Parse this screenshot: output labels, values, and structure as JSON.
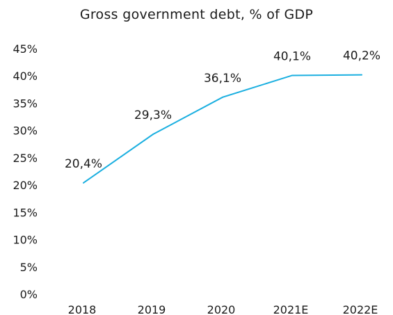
{
  "chart_data": {
    "type": "line",
    "title": "Gross government debt, % of GDP",
    "xlabel": "",
    "ylabel": "",
    "categories": [
      "2018",
      "2019",
      "2020",
      "2021E",
      "2022E"
    ],
    "series": [
      {
        "values": [
          20.4,
          29.3,
          36.1,
          40.1,
          40.2
        ],
        "data_labels": [
          "20,4%",
          "29,3%",
          "36,1%",
          "40,1%",
          "40,2%"
        ],
        "color": "#1aafe0"
      }
    ],
    "ylim": [
      0,
      45
    ],
    "y_ticks": [
      0,
      5,
      10,
      15,
      20,
      25,
      30,
      35,
      40,
      45
    ],
    "y_tick_labels": [
      "0%",
      "5%",
      "10%",
      "15%",
      "20%",
      "25%",
      "30%",
      "35%",
      "40%",
      "45%"
    ],
    "grid": false,
    "legend": "none"
  }
}
